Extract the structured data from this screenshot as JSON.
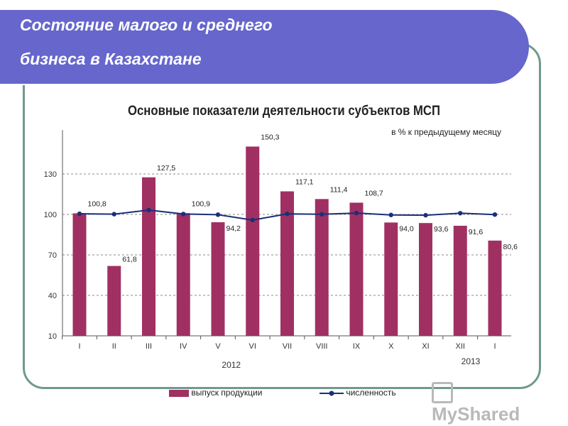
{
  "header": {
    "line1": "Состояние малого и среднего",
    "line2": "бизнеса в Казахстане"
  },
  "chart_data": {
    "type": "bar+line",
    "title": "Основные показатели деятельности субъектов МСП",
    "unit": "в % к предыдущему месяцу",
    "categories": [
      "I",
      "II",
      "III",
      "IV",
      "V",
      "VI",
      "VII",
      "VIII",
      "IX",
      "X",
      "XI",
      "XII",
      "I"
    ],
    "year_labels": [
      "2012",
      "2013"
    ],
    "series": [
      {
        "name": "выпуск продукции",
        "type": "bar",
        "color": "#a03062",
        "values": [
          100.8,
          61.8,
          127.5,
          100.9,
          94.2,
          150.3,
          117.1,
          111.4,
          108.7,
          94.0,
          93.6,
          91.6,
          80.6
        ],
        "labels": [
          "100,8",
          "61,8",
          "127,5",
          "100,9",
          "94,2",
          "150,3",
          "117,1",
          "111,4",
          "108,7",
          "94,0",
          "93,6",
          "91,6",
          "80,6"
        ]
      },
      {
        "name": "численность",
        "type": "line",
        "color": "#1a2f7a",
        "values": [
          100.5,
          100.2,
          103.2,
          100.3,
          99.8,
          95.8,
          100.4,
          100.1,
          101.0,
          99.6,
          99.4,
          100.9,
          99.9
        ]
      }
    ],
    "yticks": [
      10,
      40,
      70,
      100,
      130
    ],
    "ylim": [
      10,
      152
    ]
  },
  "colors": {
    "banner": "#6666cc",
    "frame": "#6f9a8e",
    "bar": "#a03062",
    "line": "#1a2f7a"
  },
  "watermark": "MyShared"
}
